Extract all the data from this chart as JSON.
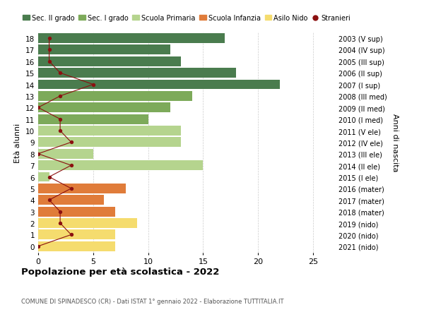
{
  "ages": [
    18,
    17,
    16,
    15,
    14,
    13,
    12,
    11,
    10,
    9,
    8,
    7,
    6,
    5,
    4,
    3,
    2,
    1,
    0
  ],
  "bar_values": [
    17,
    12,
    13,
    18,
    22,
    14,
    12,
    10,
    13,
    13,
    5,
    15,
    1,
    8,
    6,
    7,
    9,
    7,
    7
  ],
  "bar_colors": [
    "#4a7c4e",
    "#4a7c4e",
    "#4a7c4e",
    "#4a7c4e",
    "#4a7c4e",
    "#7daa5a",
    "#7daa5a",
    "#7daa5a",
    "#b5d48e",
    "#b5d48e",
    "#b5d48e",
    "#b5d48e",
    "#b5d48e",
    "#e07c3a",
    "#e07c3a",
    "#e07c3a",
    "#f5dc6e",
    "#f5dc6e",
    "#f5dc6e"
  ],
  "stranieri_values": [
    1,
    1,
    1,
    2,
    5,
    2,
    0,
    2,
    2,
    3,
    0,
    3,
    1,
    3,
    1,
    2,
    2,
    3,
    0
  ],
  "right_labels": [
    "2003 (V sup)",
    "2004 (IV sup)",
    "2005 (III sup)",
    "2006 (II sup)",
    "2007 (I sup)",
    "2008 (III med)",
    "2009 (II med)",
    "2010 (I med)",
    "2011 (V ele)",
    "2012 (IV ele)",
    "2013 (III ele)",
    "2014 (II ele)",
    "2015 (I ele)",
    "2016 (mater)",
    "2017 (mater)",
    "2018 (mater)",
    "2019 (nido)",
    "2020 (nido)",
    "2021 (nido)"
  ],
  "legend_labels": [
    "Sec. II grado",
    "Sec. I grado",
    "Scuola Primaria",
    "Scuola Infanzia",
    "Asilo Nido",
    "Stranieri"
  ],
  "legend_colors": [
    "#4a7c4e",
    "#7daa5a",
    "#b5d48e",
    "#e07c3a",
    "#f5dc6e",
    "#8b1010"
  ],
  "ylabel": "Età alunni",
  "right_ylabel": "Anni di nascita",
  "title": "Popolazione per età scolastica - 2022",
  "subtitle": "COMUNE DI SPINADESCO (CR) - Dati ISTAT 1° gennaio 2022 - Elaborazione TUTTITALIA.IT",
  "xlim": [
    0,
    27
  ],
  "stranieri_color": "#8b1010",
  "bar_height": 0.85,
  "background_color": "#ffffff",
  "grid_color": "#cccccc"
}
